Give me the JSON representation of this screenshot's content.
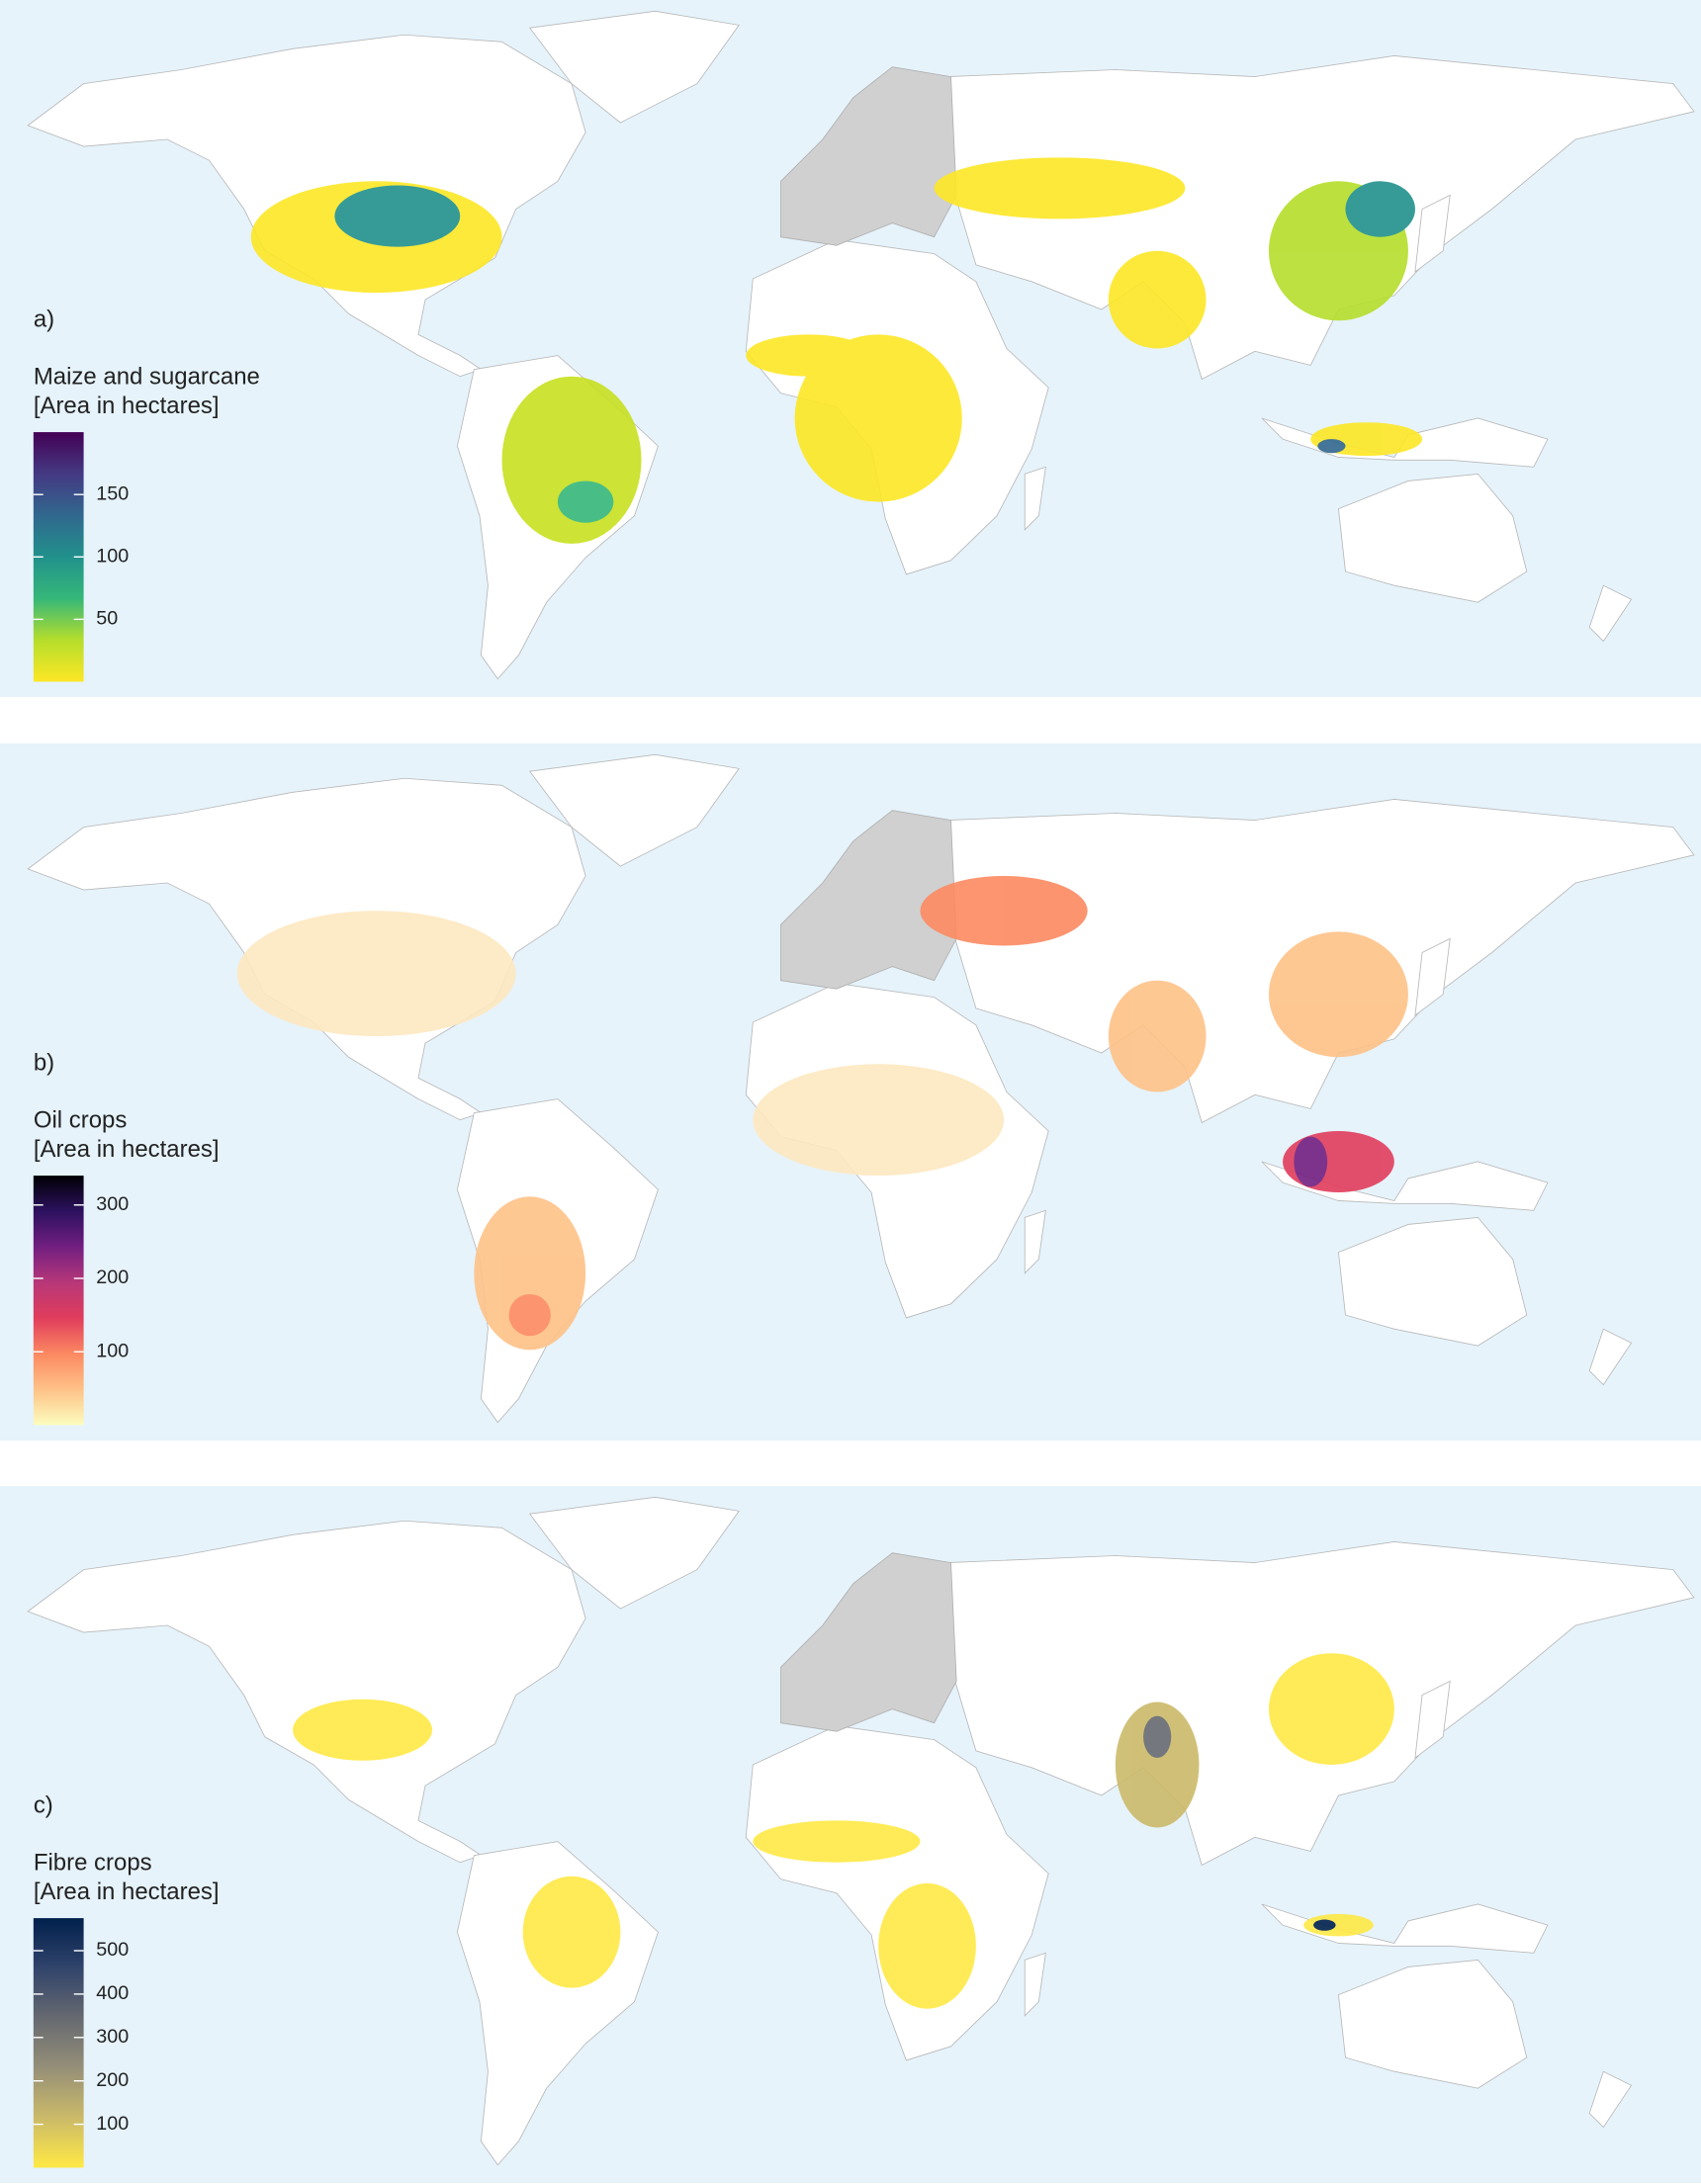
{
  "chart_data": [
    {
      "type": "choropleth",
      "panel_label": "a)",
      "title": "Maize and sugarcane",
      "subtitle": "[Area in hectares]",
      "colorbar": {
        "lim": [
          0,
          200
        ],
        "ticks": [
          50,
          100,
          150
        ],
        "colors": [
          "#fde725",
          "#b5de2b",
          "#35b779",
          "#21918c",
          "#31688e",
          "#443983",
          "#440154"
        ]
      }
    },
    {
      "type": "choropleth",
      "panel_label": "b)",
      "title": "Oil crops",
      "subtitle": "[Area in hectares]",
      "colorbar": {
        "lim": [
          0,
          340
        ],
        "ticks": [
          100,
          200,
          300
        ],
        "colors": [
          "#fcfdbf",
          "#fec287",
          "#fc8961",
          "#e13d5c",
          "#b73779",
          "#721f81",
          "#2c115f",
          "#000004"
        ]
      }
    },
    {
      "type": "choropleth",
      "panel_label": "c)",
      "title": "Fibre crops",
      "subtitle": "[Area in hectares]",
      "colorbar": {
        "lim": [
          0,
          575
        ],
        "ticks": [
          100,
          200,
          300,
          400,
          500
        ],
        "colors": [
          "#ffe945",
          "#cbba69",
          "#958f78",
          "#666970",
          "#31446b",
          "#00204c"
        ]
      }
    }
  ]
}
